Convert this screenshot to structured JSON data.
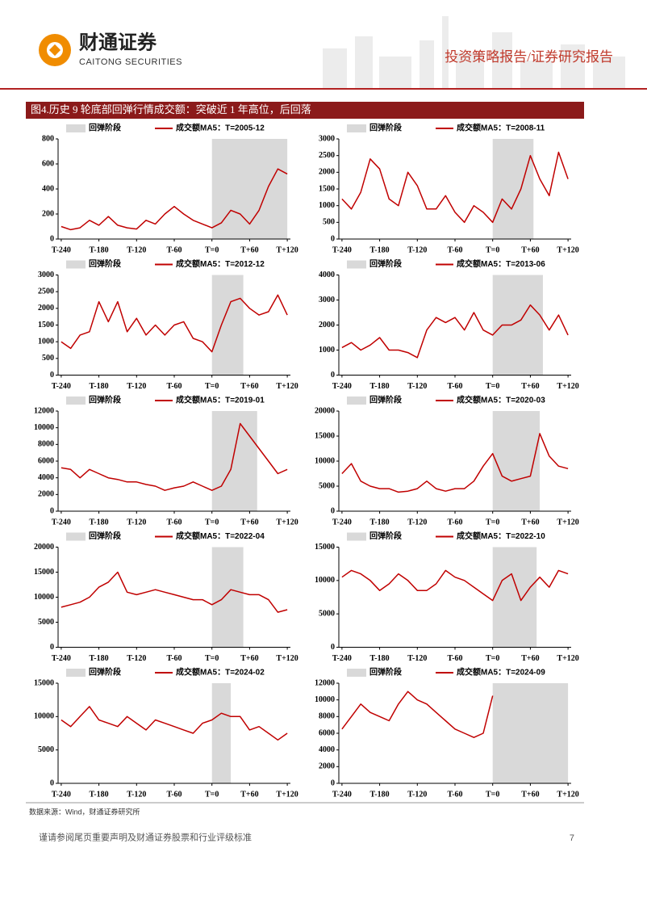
{
  "header": {
    "company_cn": "财通证券",
    "company_en": "CAITONG SECURITIES",
    "report_type": "投资策略报告/证券研究报告"
  },
  "figure_title": "图4.历史 9 轮底部回弹行情成交额：突破近 1 年高位，后回落",
  "chart_data": [
    {
      "type": "line",
      "x": [
        -240,
        -225,
        -210,
        -195,
        -180,
        -165,
        -150,
        -135,
        -120,
        -105,
        -90,
        -75,
        -60,
        -45,
        -30,
        -15,
        0,
        15,
        30,
        45,
        60,
        75,
        90,
        105,
        120
      ],
      "series": [
        {
          "name": "成交额MA5：T=2005-12",
          "color": "#c00000",
          "values": [
            100,
            75,
            90,
            150,
            110,
            180,
            110,
            90,
            80,
            150,
            120,
            200,
            260,
            200,
            150,
            120,
            90,
            130,
            230,
            200,
            120,
            230,
            420,
            560,
            520
          ]
        }
      ],
      "band": {
        "name": "回弹阶段",
        "color": "#d9d9d9",
        "x": [
          0,
          120
        ]
      },
      "xlim": [
        -245,
        125
      ],
      "xticks": [
        {
          "value": -240,
          "label": "T-240"
        },
        {
          "value": -180,
          "label": "T-180"
        },
        {
          "value": -120,
          "label": "T-120"
        },
        {
          "value": -60,
          "label": "T-60"
        },
        {
          "value": 0,
          "label": "T=0"
        },
        {
          "value": 60,
          "label": "T+60"
        },
        {
          "value": 120,
          "label": "T+120"
        }
      ],
      "ylim": [
        0,
        800
      ],
      "yticks": [
        0,
        200,
        400,
        600,
        800
      ]
    },
    {
      "type": "line",
      "x": [
        -240,
        -225,
        -210,
        -195,
        -180,
        -165,
        -150,
        -135,
        -120,
        -105,
        -90,
        -75,
        -60,
        -45,
        -30,
        -15,
        0,
        15,
        30,
        45,
        60,
        75,
        90,
        105,
        120
      ],
      "series": [
        {
          "name": "成交额MA5：T=2008-11",
          "color": "#c00000",
          "values": [
            1200,
            900,
            1400,
            2400,
            2100,
            1200,
            1000,
            2000,
            1600,
            900,
            900,
            1300,
            800,
            500,
            1000,
            800,
            500,
            1200,
            900,
            1500,
            2500,
            1800,
            1300,
            2600,
            1800
          ]
        }
      ],
      "band": {
        "name": "回弹阶段",
        "color": "#d9d9d9",
        "x": [
          0,
          65
        ]
      },
      "xlim": [
        -245,
        125
      ],
      "xticks": [
        {
          "value": -240,
          "label": "T-240"
        },
        {
          "value": -180,
          "label": "T-180"
        },
        {
          "value": -120,
          "label": "T-120"
        },
        {
          "value": -60,
          "label": "T-60"
        },
        {
          "value": 0,
          "label": "T=0"
        },
        {
          "value": 60,
          "label": "T+60"
        },
        {
          "value": 120,
          "label": "T+120"
        }
      ],
      "ylim": [
        0,
        3000
      ],
      "yticks": [
        0,
        500,
        1000,
        1500,
        2000,
        2500,
        3000
      ]
    },
    {
      "type": "line",
      "x": [
        -240,
        -225,
        -210,
        -195,
        -180,
        -165,
        -150,
        -135,
        -120,
        -105,
        -90,
        -75,
        -60,
        -45,
        -30,
        -15,
        0,
        15,
        30,
        45,
        60,
        75,
        90,
        105,
        120
      ],
      "series": [
        {
          "name": "成交额MA5：T=2012-12",
          "color": "#c00000",
          "values": [
            1000,
            800,
            1200,
            1300,
            2200,
            1600,
            2200,
            1300,
            1700,
            1200,
            1500,
            1200,
            1500,
            1600,
            1100,
            1000,
            700,
            1500,
            2200,
            2300,
            2000,
            1800,
            1900,
            2400,
            1800
          ]
        }
      ],
      "band": {
        "name": "回弹阶段",
        "color": "#d9d9d9",
        "x": [
          0,
          50
        ]
      },
      "xlim": [
        -245,
        125
      ],
      "xticks": [
        {
          "value": -240,
          "label": "T-240"
        },
        {
          "value": -180,
          "label": "T-180"
        },
        {
          "value": -120,
          "label": "T-120"
        },
        {
          "value": -60,
          "label": "T-60"
        },
        {
          "value": 0,
          "label": "T=0"
        },
        {
          "value": 60,
          "label": "T+60"
        },
        {
          "value": 120,
          "label": "T+120"
        }
      ],
      "ylim": [
        0,
        3000
      ],
      "yticks": [
        0,
        500,
        1000,
        1500,
        2000,
        2500,
        3000
      ]
    },
    {
      "type": "line",
      "x": [
        -240,
        -225,
        -210,
        -195,
        -180,
        -165,
        -150,
        -135,
        -120,
        -105,
        -90,
        -75,
        -60,
        -45,
        -30,
        -15,
        0,
        15,
        30,
        45,
        60,
        75,
        90,
        105,
        120
      ],
      "series": [
        {
          "name": "成交额MA5：T=2013-06",
          "color": "#c00000",
          "values": [
            1100,
            1300,
            1000,
            1200,
            1500,
            1000,
            1000,
            900,
            700,
            1800,
            2300,
            2100,
            2300,
            1800,
            2500,
            1800,
            1600,
            2000,
            2000,
            2200,
            2800,
            2400,
            1800,
            2400,
            1600
          ]
        }
      ],
      "band": {
        "name": "回弹阶段",
        "color": "#d9d9d9",
        "x": [
          0,
          80
        ]
      },
      "xlim": [
        -245,
        125
      ],
      "xticks": [
        {
          "value": -240,
          "label": "T-240"
        },
        {
          "value": -180,
          "label": "T-180"
        },
        {
          "value": -120,
          "label": "T-120"
        },
        {
          "value": -60,
          "label": "T-60"
        },
        {
          "value": 0,
          "label": "T=0"
        },
        {
          "value": 60,
          "label": "T+60"
        },
        {
          "value": 120,
          "label": "T+120"
        }
      ],
      "ylim": [
        0,
        4000
      ],
      "yticks": [
        0,
        1000,
        2000,
        3000,
        4000
      ]
    },
    {
      "type": "line",
      "x": [
        -240,
        -225,
        -210,
        -195,
        -180,
        -165,
        -150,
        -135,
        -120,
        -105,
        -90,
        -75,
        -60,
        -45,
        -30,
        -15,
        0,
        15,
        30,
        45,
        60,
        75,
        90,
        105,
        120
      ],
      "series": [
        {
          "name": "成交额MA5：T=2019-01",
          "color": "#c00000",
          "values": [
            5200,
            5000,
            4000,
            5000,
            4500,
            4000,
            3800,
            3500,
            3500,
            3200,
            3000,
            2500,
            2800,
            3000,
            3500,
            3000,
            2500,
            3000,
            5000,
            10500,
            9000,
            7500,
            6000,
            4500,
            5000
          ]
        }
      ],
      "band": {
        "name": "回弹阶段",
        "color": "#d9d9d9",
        "x": [
          0,
          72
        ]
      },
      "xlim": [
        -245,
        125
      ],
      "xticks": [
        {
          "value": -240,
          "label": "T-240"
        },
        {
          "value": -180,
          "label": "T-180"
        },
        {
          "value": -120,
          "label": "T-120"
        },
        {
          "value": -60,
          "label": "T-60"
        },
        {
          "value": 0,
          "label": "T=0"
        },
        {
          "value": 60,
          "label": "T+60"
        },
        {
          "value": 120,
          "label": "T+120"
        }
      ],
      "ylim": [
        0,
        12000
      ],
      "yticks": [
        0,
        2000,
        4000,
        6000,
        8000,
        10000,
        12000
      ]
    },
    {
      "type": "line",
      "x": [
        -240,
        -225,
        -210,
        -195,
        -180,
        -165,
        -150,
        -135,
        -120,
        -105,
        -90,
        -75,
        -60,
        -45,
        -30,
        -15,
        0,
        15,
        30,
        45,
        60,
        75,
        90,
        105,
        120
      ],
      "series": [
        {
          "name": "成交额MA5：T=2020-03",
          "color": "#c00000",
          "values": [
            7500,
            9500,
            6000,
            5000,
            4500,
            4500,
            3800,
            4000,
            4500,
            6000,
            4500,
            4000,
            4500,
            4500,
            6000,
            9000,
            11500,
            7000,
            6000,
            6500,
            7000,
            15500,
            11000,
            9000,
            8500
          ]
        }
      ],
      "band": {
        "name": "回弹阶段",
        "color": "#d9d9d9",
        "x": [
          0,
          75
        ]
      },
      "xlim": [
        -245,
        125
      ],
      "xticks": [
        {
          "value": -240,
          "label": "T-240"
        },
        {
          "value": -180,
          "label": "T-180"
        },
        {
          "value": -120,
          "label": "T-120"
        },
        {
          "value": -60,
          "label": "T-60"
        },
        {
          "value": 0,
          "label": "T=0"
        },
        {
          "value": 60,
          "label": "T+60"
        },
        {
          "value": 120,
          "label": "T+120"
        }
      ],
      "ylim": [
        0,
        20000
      ],
      "yticks": [
        0,
        5000,
        10000,
        15000,
        20000
      ]
    },
    {
      "type": "line",
      "x": [
        -240,
        -225,
        -210,
        -195,
        -180,
        -165,
        -150,
        -135,
        -120,
        -105,
        -90,
        -75,
        -60,
        -45,
        -30,
        -15,
        0,
        15,
        30,
        45,
        60,
        75,
        90,
        105,
        120
      ],
      "series": [
        {
          "name": "成交额MA5：T=2022-04",
          "color": "#c00000",
          "values": [
            8000,
            8500,
            9000,
            10000,
            12000,
            13000,
            15000,
            11000,
            10500,
            11000,
            11500,
            11000,
            10500,
            10000,
            9500,
            9500,
            8500,
            9500,
            11500,
            11000,
            10500,
            10500,
            9500,
            7000,
            7500
          ]
        }
      ],
      "band": {
        "name": "回弹阶段",
        "color": "#d9d9d9",
        "x": [
          0,
          50
        ]
      },
      "xlim": [
        -245,
        125
      ],
      "xticks": [
        {
          "value": -240,
          "label": "T-240"
        },
        {
          "value": -180,
          "label": "T-180"
        },
        {
          "value": -120,
          "label": "T-120"
        },
        {
          "value": -60,
          "label": "T-60"
        },
        {
          "value": 0,
          "label": "T=0"
        },
        {
          "value": 60,
          "label": "T+60"
        },
        {
          "value": 120,
          "label": "T+120"
        }
      ],
      "ylim": [
        0,
        20000
      ],
      "yticks": [
        0,
        5000,
        10000,
        15000,
        20000
      ]
    },
    {
      "type": "line",
      "x": [
        -240,
        -225,
        -210,
        -195,
        -180,
        -165,
        -150,
        -135,
        -120,
        -105,
        -90,
        -75,
        -60,
        -45,
        -30,
        -15,
        0,
        15,
        30,
        45,
        60,
        75,
        90,
        105,
        120
      ],
      "series": [
        {
          "name": "成交额MA5：T=2022-10",
          "color": "#c00000",
          "values": [
            10500,
            11500,
            11000,
            10000,
            8500,
            9500,
            11000,
            10000,
            8500,
            8500,
            9500,
            11500,
            10500,
            10000,
            9000,
            8000,
            7000,
            10000,
            11000,
            7000,
            9000,
            10500,
            9000,
            11500,
            11000
          ]
        }
      ],
      "band": {
        "name": "回弹阶段",
        "color": "#d9d9d9",
        "x": [
          0,
          70
        ]
      },
      "xlim": [
        -245,
        125
      ],
      "xticks": [
        {
          "value": -240,
          "label": "T-240"
        },
        {
          "value": -180,
          "label": "T-180"
        },
        {
          "value": -120,
          "label": "T-120"
        },
        {
          "value": -60,
          "label": "T-60"
        },
        {
          "value": 0,
          "label": "T=0"
        },
        {
          "value": 60,
          "label": "T+60"
        },
        {
          "value": 120,
          "label": "T+120"
        }
      ],
      "ylim": [
        0,
        15000
      ],
      "yticks": [
        0,
        5000,
        10000,
        15000
      ]
    },
    {
      "type": "line",
      "x": [
        -240,
        -225,
        -210,
        -195,
        -180,
        -165,
        -150,
        -135,
        -120,
        -105,
        -90,
        -75,
        -60,
        -45,
        -30,
        -15,
        0,
        15,
        30,
        45,
        60,
        75,
        90,
        105,
        120
      ],
      "series": [
        {
          "name": "成交额MA5：T=2024-02",
          "color": "#c00000",
          "values": [
            9500,
            8500,
            10000,
            11500,
            9500,
            9000,
            8500,
            10000,
            9000,
            8000,
            9500,
            9000,
            8500,
            8000,
            7500,
            9000,
            9500,
            10500,
            10000,
            10000,
            8000,
            8500,
            7500,
            6500,
            7500
          ]
        }
      ],
      "band": {
        "name": "回弹阶段",
        "color": "#d9d9d9",
        "x": [
          0,
          30
        ]
      },
      "xlim": [
        -245,
        125
      ],
      "xticks": [
        {
          "value": -240,
          "label": "T-240"
        },
        {
          "value": -180,
          "label": "T-180"
        },
        {
          "value": -120,
          "label": "T-120"
        },
        {
          "value": -60,
          "label": "T-60"
        },
        {
          "value": 0,
          "label": "T=0"
        },
        {
          "value": 60,
          "label": "T+60"
        },
        {
          "value": 120,
          "label": "T+120"
        }
      ],
      "ylim": [
        0,
        15000
      ],
      "yticks": [
        0,
        5000,
        10000,
        15000
      ]
    },
    {
      "type": "line",
      "x": [
        -240,
        -225,
        -210,
        -195,
        -180,
        -165,
        -150,
        -135,
        -120,
        -105,
        -90,
        -75,
        -60,
        -45,
        -30,
        -15,
        0
      ],
      "series": [
        {
          "name": "成交额MA5：T=2024-09",
          "color": "#c00000",
          "values": [
            6500,
            8000,
            9500,
            8500,
            8000,
            7500,
            9500,
            11000,
            10000,
            9500,
            8500,
            7500,
            6500,
            6000,
            5500,
            6000,
            10500
          ]
        }
      ],
      "band": {
        "name": "回弹阶段",
        "color": "#d9d9d9",
        "x": [
          0,
          120
        ]
      },
      "xlim": [
        -245,
        125
      ],
      "xticks": [
        {
          "value": -240,
          "label": "T-240"
        },
        {
          "value": -180,
          "label": "T-180"
        },
        {
          "value": -120,
          "label": "T-120"
        },
        {
          "value": -60,
          "label": "T-60"
        },
        {
          "value": 0,
          "label": "T=0"
        },
        {
          "value": 60,
          "label": "T+60"
        },
        {
          "value": 120,
          "label": "T+120"
        }
      ],
      "ylim": [
        0,
        12000
      ],
      "yticks": [
        0,
        2000,
        4000,
        6000,
        8000,
        10000,
        12000
      ]
    }
  ],
  "source": "数据来源：Wind，财通证券研究所",
  "footer": {
    "disclaimer": "谨请参阅尾页重要声明及财通证券股票和行业评级标准",
    "page_number": "7"
  }
}
